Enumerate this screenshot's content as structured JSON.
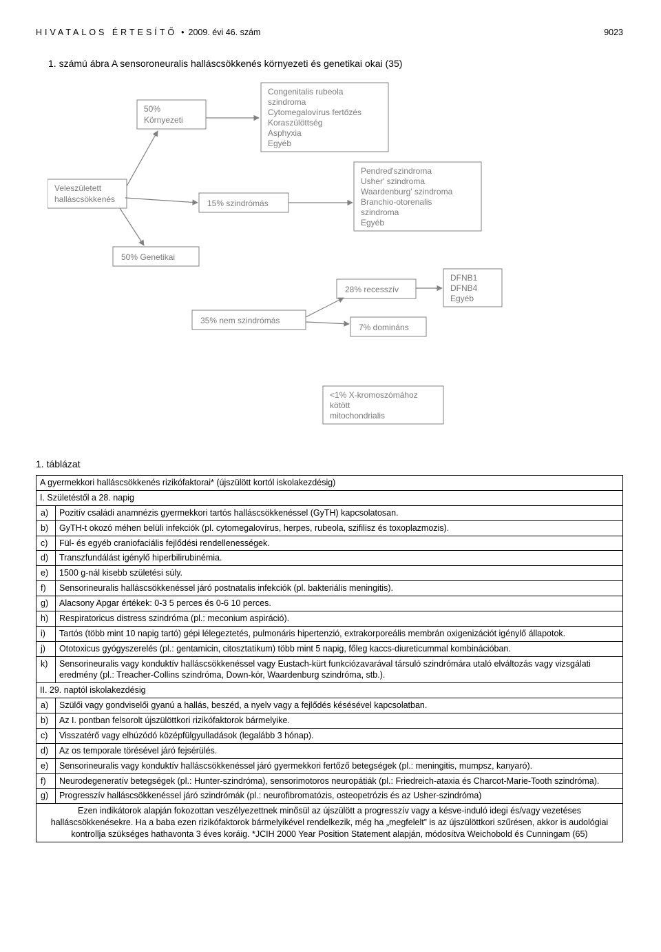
{
  "header": {
    "pub": "HIVATALOS ÉRTESÍTŐ",
    "dot": "•",
    "issue": "2009. évi 46. szám",
    "page": "9023"
  },
  "figure": {
    "title": "1. számú ábra  A sensoroneuralis halláscsökkenés környezeti és genetikai okai (35)",
    "boxes": {
      "env": {
        "l1": "50%",
        "l2": "Környezeti"
      },
      "congenital": {
        "l1": "Congenitalis rubeola",
        "l2": "szindroma",
        "l3": "Cytomegalovírus fertőzés",
        "l4": "Koraszülöttség",
        "l5": "Asphyxia",
        "l6": "Egyéb"
      },
      "inborn": {
        "l1": "Veleszületett",
        "l2": "halláscsökkenés"
      },
      "syndromic": {
        "l1": "15% szindrómás"
      },
      "pendred": {
        "l1": "Pendred'szindroma",
        "l2": "Usher' szindroma",
        "l3": "Waardenburg' szindroma",
        "l4": "Branchio-otorenalis",
        "l5": "szindroma",
        "l6": "Egyéb"
      },
      "genet": {
        "l1": "50% Genetikai"
      },
      "recessive": {
        "l1": "28% recesszív"
      },
      "dfnb": {
        "l1": "DFNB1",
        "l2": "DFNB4",
        "l3": "Egyéb"
      },
      "nonsyn": {
        "l1": "35% nem szindrómás"
      },
      "dominant": {
        "l1": "7% domináns"
      },
      "xlinked": {
        "l1": "<1% X-kromoszómához",
        "l2": "kötött",
        "l3": "mitochondrialis"
      }
    },
    "style": {
      "font_size": 12,
      "color": "#7a7a7a",
      "title_color": "#000000",
      "border": "#808080",
      "arrow_color": "#808080",
      "arrow_width": 1.2
    }
  },
  "table": {
    "label": "1. táblázat",
    "section1": "A gyermekkori halláscsökkenés rizikófaktorai* (újszülött kortól iskolakezdésig)",
    "period1": "I. Születéstől a 28. napig",
    "rows1": [
      {
        "k": "a)",
        "v": "Pozitív családi anamnézis gyermekkori tartós halláscsökkenéssel (GyTH) kapcsolatosan."
      },
      {
        "k": "b)",
        "v": "GyTH-t okozó méhen belüli infekciók (pl. cytomegalovírus, herpes, rubeola, szifilisz és toxoplazmozis)."
      },
      {
        "k": "c)",
        "v": "Fül- és egyéb craniofaciális fejlődési rendellenességek."
      },
      {
        "k": "d)",
        "v": "Transzfundálást igénylő hiperbilirubinémia."
      },
      {
        "k": "e)",
        "v": "1500 g-nál kisebb születési súly."
      },
      {
        "k": "f)",
        "v": "Sensorineuralis halláscsökkenéssel járó postnatalis infekciók (pl. bakteriális meningitis)."
      },
      {
        "k": "g)",
        "v": "Alacsony Apgar értékek: 0-3 5 perces és 0-6 10 perces."
      },
      {
        "k": "h)",
        "v": "Respiratoricus distress szindróma (pl.: meconium aspiráció)."
      },
      {
        "k": "i)",
        "v": "Tartós (több mint 10 napig tartó) gépi lélegeztetés, pulmonáris hipertenzió, extrakorporeális membrán oxigenizációt igénylő állapotok."
      },
      {
        "k": "j)",
        "v": "Ototoxicus gyógyszerelés (pl.: gentamicin, citosztatikum) több mint 5 napig, főleg kaccs-diureticummal kombinációban."
      },
      {
        "k": "k)",
        "v": "Sensorineuralis vagy konduktív halláscsökkenéssel vagy Eustach-kürt funkciózavarával társuló szindrómára utaló elváltozás vagy vizsgálati eredmény (pl.: Treacher-Collins szindróma, Down-kór, Waardenburg szindróma, stb.)."
      }
    ],
    "period2": "II. 29. naptól iskolakezdésig",
    "rows2": [
      {
        "k": "a)",
        "v": "Szülői vagy gondviselői gyanú a hallás, beszéd, a nyelv vagy a fejlődés késésével kapcsolatban."
      },
      {
        "k": "b)",
        "v": "Az I. pontban felsorolt újszülöttkori rizikófaktorok bármelyike."
      },
      {
        "k": "c)",
        "v": "Visszatérő vagy elhúzódó középfülgyulladások (legalább 3 hónap)."
      },
      {
        "k": "d)",
        "v": "Az os temporale törésével járó fejsérülés."
      },
      {
        "k": "e)",
        "v": "Sensorineuralis vagy konduktív halláscsökkenéssel járó gyermekkori fertőző betegségek (pl.: meningitis, mumpsz, kanyaró)."
      },
      {
        "k": "f)",
        "v": "Neurodegeneratív betegségek (pl.: Hunter-szindróma), sensorimotoros neuropátiák (pl.: Friedreich-ataxia és Charcot-Marie-Tooth szindróma)."
      },
      {
        "k": "g)",
        "v": "Progresszív halláscsökkenéssel járó szindrómák (pl.: neurofibromatózis, osteopetrózis és az Usher-szindróma)"
      }
    ],
    "footer": "Ezen indikátorok alapján fokozottan veszélyezettnek minősül az újszülött a progresszív vagy a késve-induló idegi és/vagy vezetéses halláscsökkenésekre. Ha a baba ezen rizikófaktorok bármelyikével rendelkezik, még ha „megfelelt” is az újszülöttkori szűrésen, akkor is audológiai kontrollja szükséges hathavonta 3 éves koráig. *JCIH 2000 Year Position Statement alapján, módosítva Weichobold és Cunningam (65)"
  }
}
